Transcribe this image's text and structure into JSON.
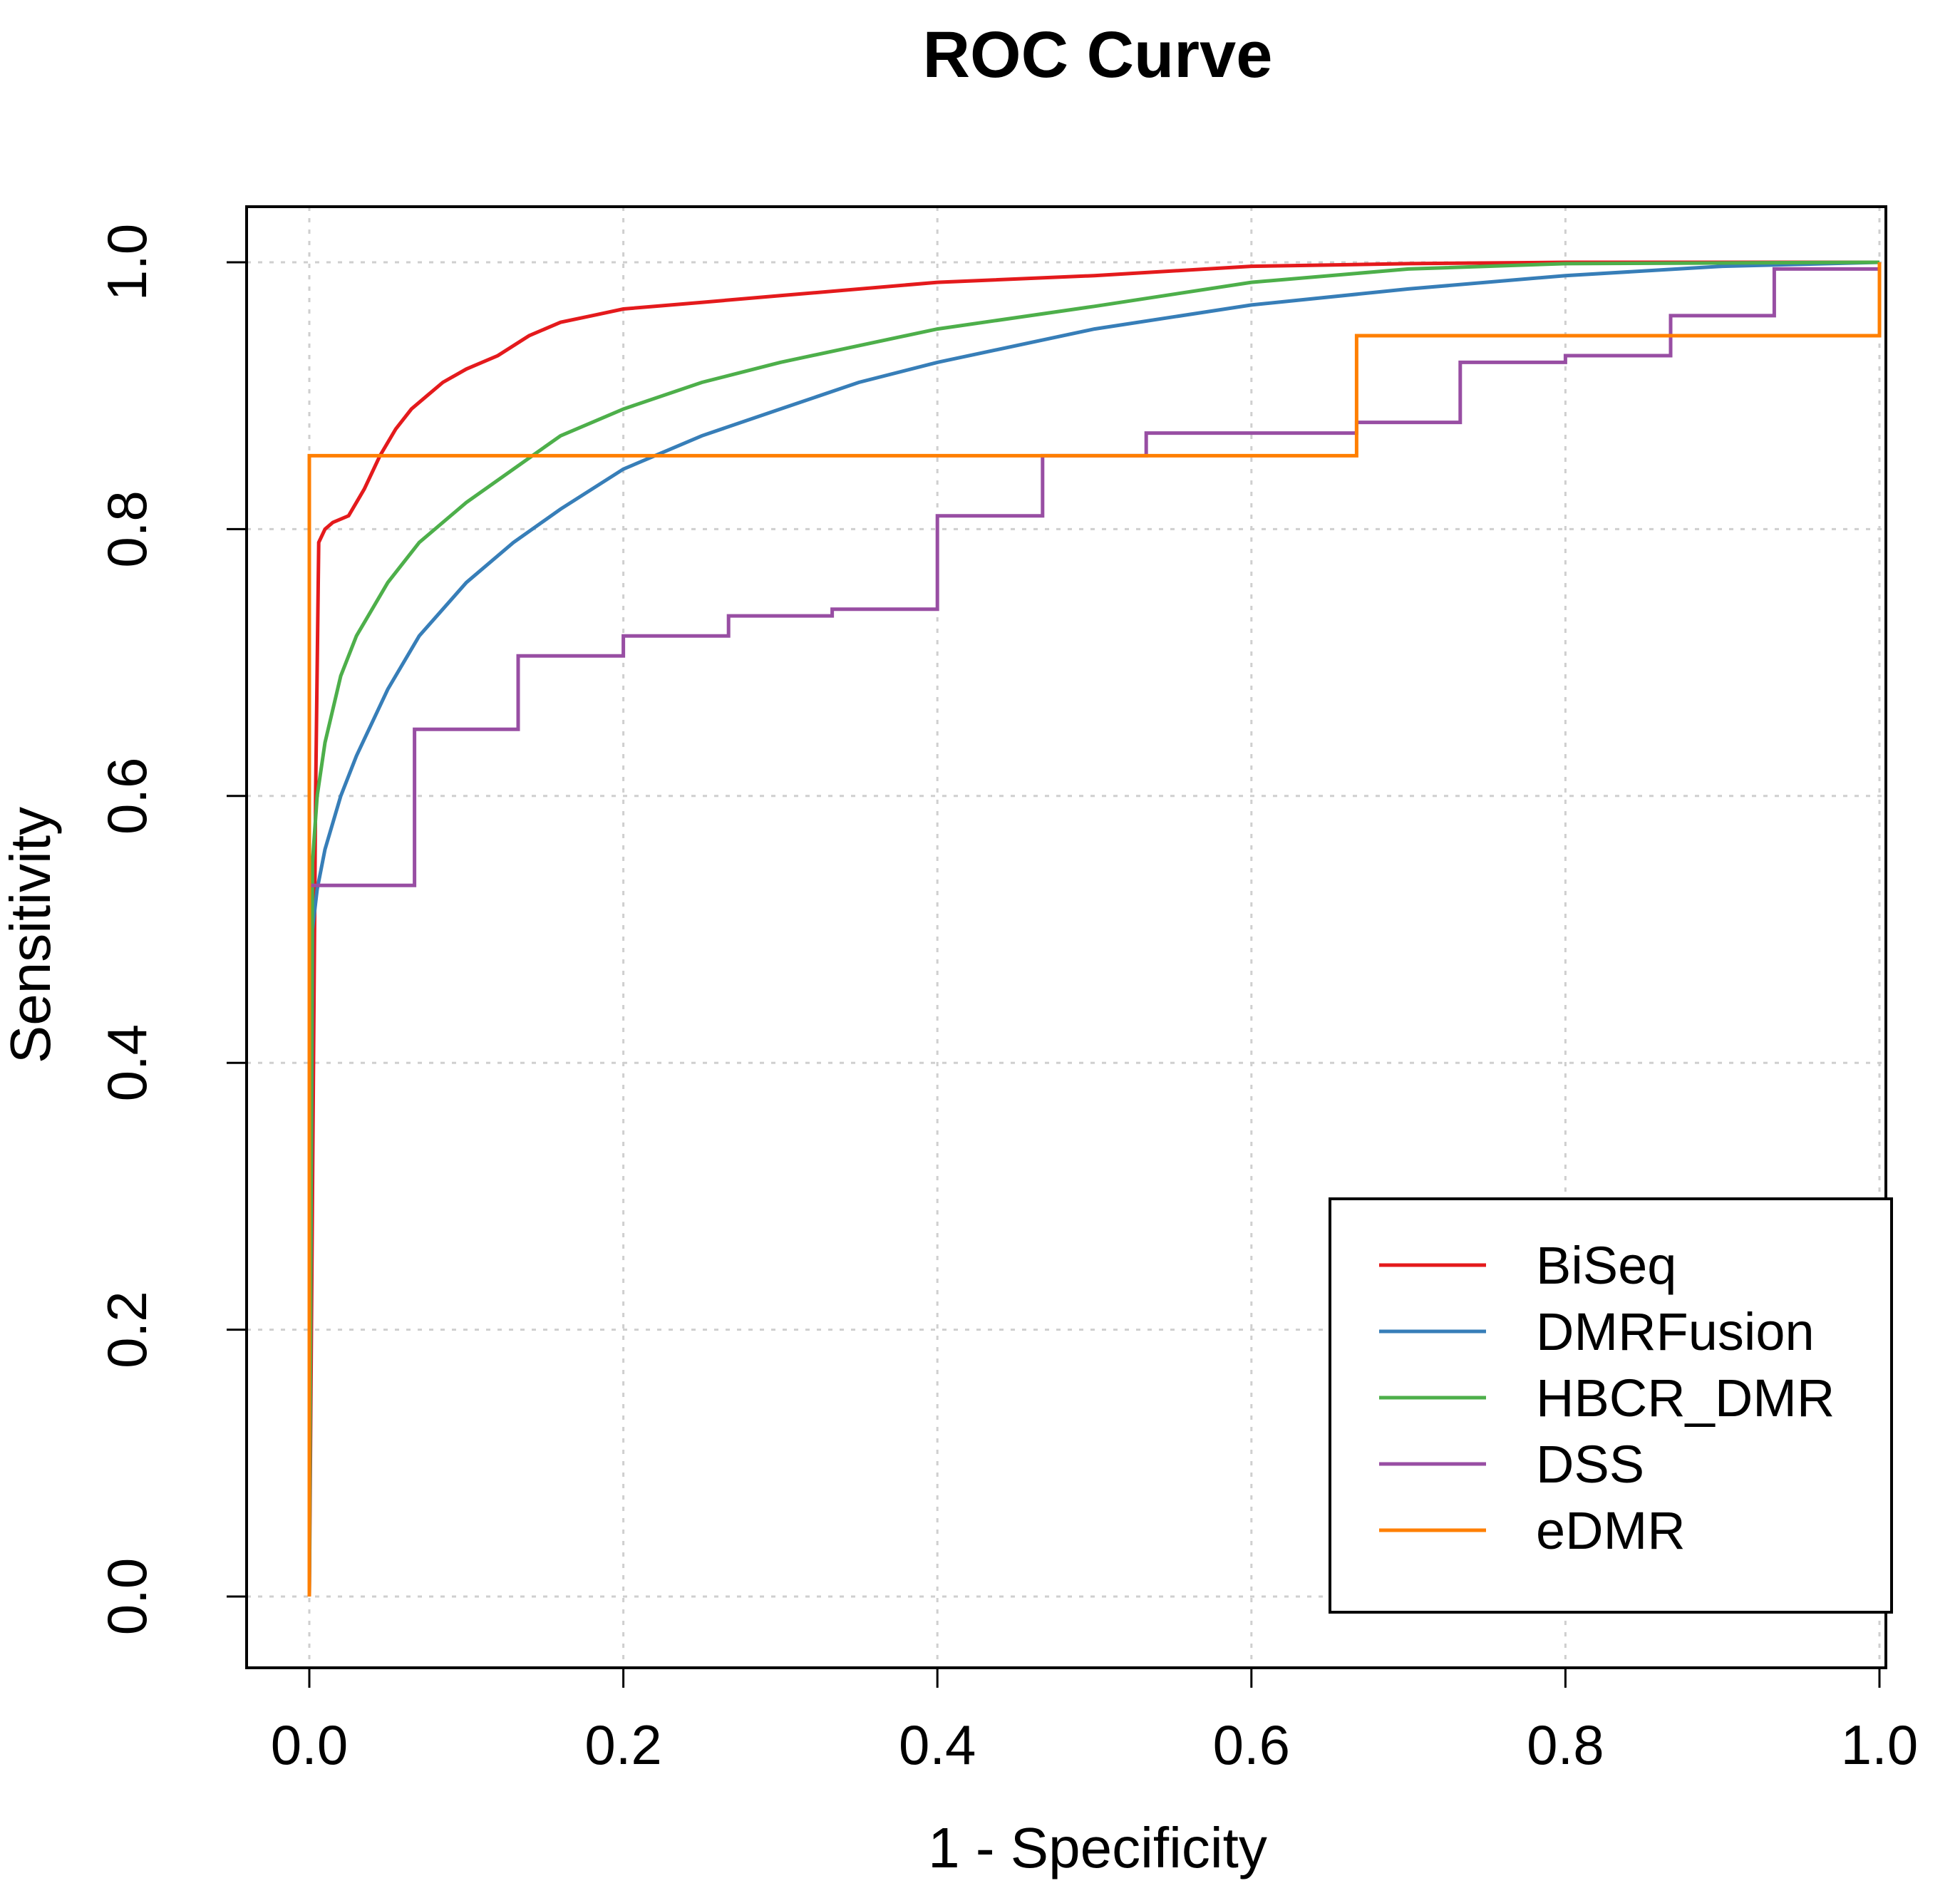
{
  "chart_data": {
    "type": "line",
    "title": "ROC Curve",
    "xlabel": "1 - Specificity",
    "ylabel": "Sensitivity",
    "xlim": [
      0,
      1
    ],
    "ylim": [
      0,
      1
    ],
    "xticks": [
      "0.0",
      "0.2",
      "0.4",
      "0.6",
      "0.8",
      "1.0"
    ],
    "yticks": [
      "0.0",
      "0.2",
      "0.4",
      "0.6",
      "0.8",
      "1.0"
    ],
    "grid": true,
    "legend_position": "bottom-right",
    "series": [
      {
        "name": "BiSeq",
        "color": "#e41a1c",
        "x": [
          0,
          0.002,
          0.004,
          0.006,
          0.01,
          0.015,
          0.025,
          0.035,
          0.045,
          0.055,
          0.065,
          0.075,
          0.085,
          0.1,
          0.12,
          0.14,
          0.16,
          0.18,
          0.2,
          0.25,
          0.3,
          0.4,
          0.5,
          0.6,
          0.7,
          0.8,
          1.0
        ],
        "y": [
          0,
          0.3,
          0.6,
          0.79,
          0.8,
          0.805,
          0.81,
          0.83,
          0.855,
          0.875,
          0.89,
          0.9,
          0.91,
          0.92,
          0.93,
          0.945,
          0.955,
          0.96,
          0.965,
          0.97,
          0.975,
          0.985,
          0.99,
          0.997,
          0.999,
          1.0,
          1.0
        ]
      },
      {
        "name": "DMRFusion",
        "color": "#377eb8",
        "x": [
          0,
          0.002,
          0.005,
          0.01,
          0.02,
          0.03,
          0.05,
          0.07,
          0.1,
          0.13,
          0.16,
          0.2,
          0.25,
          0.3,
          0.35,
          0.4,
          0.5,
          0.6,
          0.7,
          0.8,
          0.9,
          1.0
        ],
        "y": [
          0,
          0.5,
          0.53,
          0.56,
          0.6,
          0.63,
          0.68,
          0.72,
          0.76,
          0.79,
          0.815,
          0.845,
          0.87,
          0.89,
          0.91,
          0.925,
          0.95,
          0.968,
          0.98,
          0.99,
          0.997,
          1.0
        ]
      },
      {
        "name": "HBCR_DMR",
        "color": "#4daf4a",
        "x": [
          0,
          0.002,
          0.005,
          0.01,
          0.02,
          0.03,
          0.05,
          0.07,
          0.1,
          0.13,
          0.16,
          0.2,
          0.25,
          0.3,
          0.4,
          0.5,
          0.6,
          0.7,
          0.8,
          1.0
        ],
        "y": [
          0,
          0.55,
          0.6,
          0.64,
          0.69,
          0.72,
          0.76,
          0.79,
          0.82,
          0.845,
          0.87,
          0.89,
          0.91,
          0.925,
          0.95,
          0.967,
          0.985,
          0.995,
          0.999,
          1.0
        ]
      },
      {
        "name": "DSS",
        "color": "#984ea3",
        "x": [
          0,
          0,
          0.067,
          0.067,
          0.133,
          0.133,
          0.2,
          0.2,
          0.267,
          0.267,
          0.333,
          0.333,
          0.4,
          0.4,
          0.467,
          0.467,
          0.533,
          0.533,
          0.667,
          0.667,
          0.733,
          0.733,
          0.8,
          0.8,
          0.867,
          0.867,
          0.933,
          0.933,
          1.0,
          1.0
        ],
        "y": [
          0,
          0.533,
          0.533,
          0.65,
          0.65,
          0.705,
          0.705,
          0.72,
          0.72,
          0.735,
          0.735,
          0.74,
          0.74,
          0.81,
          0.81,
          0.855,
          0.855,
          0.872,
          0.872,
          0.88,
          0.88,
          0.925,
          0.925,
          0.93,
          0.93,
          0.96,
          0.96,
          0.995,
          0.995,
          1.0
        ]
      },
      {
        "name": "eDMR",
        "color": "#ff7f00",
        "x": [
          0,
          0,
          0.667,
          0.667,
          1.0,
          1.0
        ],
        "y": [
          0,
          0.855,
          0.855,
          0.945,
          0.945,
          1.0
        ]
      }
    ]
  }
}
